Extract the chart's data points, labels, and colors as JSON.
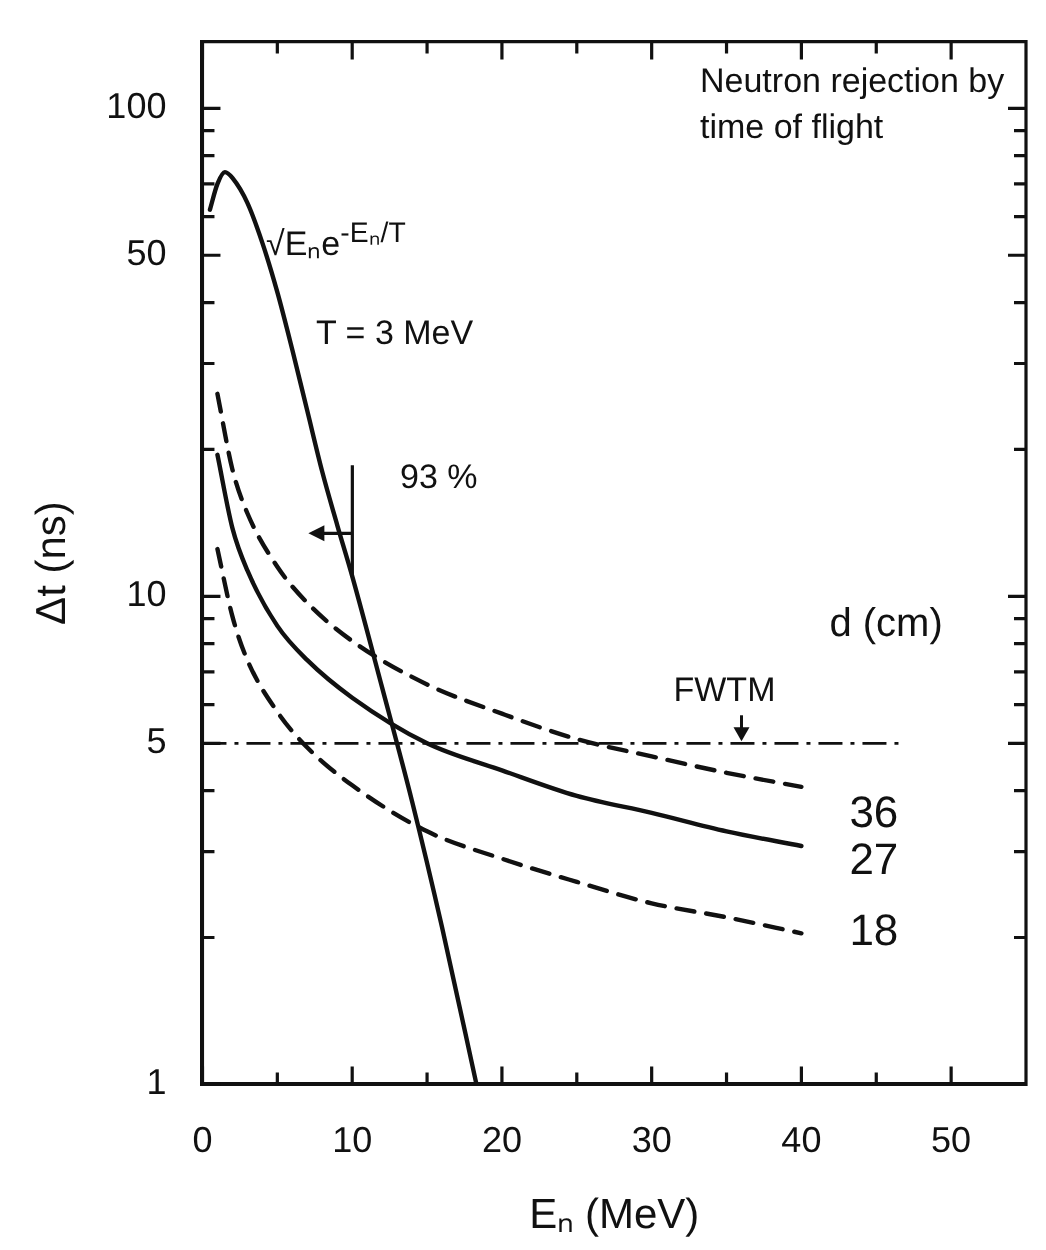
{
  "chart_data": {
    "type": "line",
    "xlabel": "Eₙ (MeV)",
    "ylabel": "Δt (ns)",
    "legend_title": "d (cm)",
    "log": "y",
    "legend": false,
    "grid": false,
    "marker": "none",
    "xlim": [
      0,
      55
    ],
    "ylim": [
      1,
      137
    ],
    "xticks": [
      0,
      {
        "value": 5,
        "label": null
      },
      10,
      {
        "value": 15,
        "label": null
      },
      20,
      {
        "value": 25,
        "label": null
      },
      30,
      {
        "value": 35,
        "label": null
      },
      40,
      {
        "value": 45,
        "label": null
      },
      50
    ],
    "yticks": [
      1,
      {
        "value": 2,
        "label": null
      },
      {
        "value": 3,
        "label": null
      },
      {
        "value": 4,
        "label": null
      },
      5,
      {
        "value": 6,
        "label": null
      },
      {
        "value": 7,
        "label": null
      },
      {
        "value": 8,
        "label": null
      },
      {
        "value": 9,
        "label": null
      },
      10,
      {
        "value": 20,
        "label": null
      },
      {
        "value": 30,
        "label": null
      },
      {
        "value": 40,
        "label": null
      },
      50,
      {
        "value": 60,
        "label": null
      },
      {
        "value": 70,
        "label": null
      },
      {
        "value": 80,
        "label": null
      },
      {
        "value": 90,
        "label": null
      },
      100
    ],
    "series": [
      {
        "color": "#111111",
        "line_style": "solid",
        "x": [
          0.5,
          1,
          1.5,
          2,
          3,
          4,
          5,
          6,
          7,
          8,
          9,
          10,
          12,
          14,
          16,
          18.3
        ],
        "values": [
          62,
          70,
          74,
          72,
          64,
          53,
          42,
          32,
          24,
          18,
          14,
          11,
          6.5,
          3.8,
          2.1,
          1
        ]
      },
      {
        "name": "36",
        "color": "#111111",
        "line_style": "dashed",
        "x": [
          1,
          2,
          3,
          5,
          7,
          10,
          15,
          20,
          25,
          30,
          35,
          40
        ],
        "values": [
          26,
          18.2,
          14.8,
          11.5,
          9.7,
          8.1,
          6.6,
          5.75,
          5.1,
          4.7,
          4.35,
          4.07
        ]
      },
      {
        "name": "27",
        "color": "#111111",
        "line_style": "solid",
        "x": [
          1,
          2,
          3,
          5,
          7,
          10,
          15,
          20,
          25,
          30,
          35,
          40
        ],
        "values": [
          19.5,
          13.8,
          11.3,
          8.7,
          7.4,
          6.2,
          5,
          4.4,
          3.9,
          3.6,
          3.3,
          3.08
        ]
      },
      {
        "name": "18",
        "color": "#111111",
        "line_style": "dashed",
        "x": [
          1,
          2,
          3,
          5,
          7,
          10,
          15,
          20,
          25,
          30,
          35,
          40
        ],
        "values": [
          12.5,
          9.1,
          7.4,
          5.8,
          4.9,
          4.1,
          3.3,
          2.9,
          2.6,
          2.35,
          2.2,
          2.04
        ]
      }
    ],
    "ref_lines": [
      {
        "axis": "y",
        "value": 5,
        "line_style": "dashdot",
        "color": "#111111"
      }
    ],
    "annotations": [
      "Neutron rejection by time of flight",
      "√Eₙe$^{-Eₙ/T}$",
      "T = 3 MeV",
      {
        "text": "FWTM",
        "x": 36,
        "y": 5
      },
      "93 %"
    ]
  }
}
